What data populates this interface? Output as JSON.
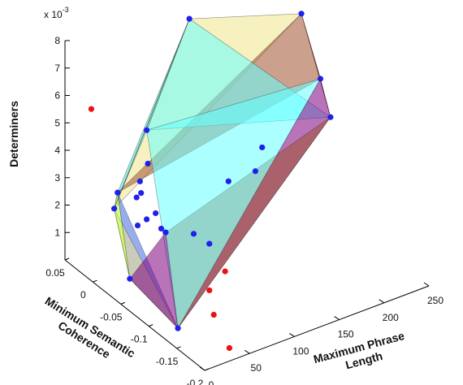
{
  "chart_data": {
    "type": "scatter",
    "subtype": "3d-scatter-with-convex-hull",
    "title": "",
    "xlabel": "Maximum Phrase Length",
    "ylabel": "Minimum Semantic Coherence",
    "zlabel": "Determiners",
    "z_exponent_label": "x 10",
    "z_exponent_power": "-3",
    "xlim": [
      0,
      250
    ],
    "ylim": [
      -0.2,
      0.05
    ],
    "zlim": [
      0,
      0.008
    ],
    "x_ticks": [
      "0",
      "50",
      "100",
      "150",
      "200",
      "250"
    ],
    "y_ticks": [
      "-0.2",
      "-0.15",
      "-0.1",
      "-0.05",
      "0",
      "0.05"
    ],
    "z_ticks": [
      "1",
      "2",
      "3",
      "4",
      "5",
      "6",
      "7",
      "8"
    ],
    "grid": false,
    "series": [
      {
        "color": "#2020ee",
        "points": [
          {
            "x": 120,
            "y": 0.02,
            "z": 0.0078
          },
          {
            "x": 220,
            "y": -0.02,
            "z": 0.0074
          },
          {
            "x": 235,
            "y": -0.03,
            "z": 0.005
          },
          {
            "x": 240,
            "y": -0.04,
            "z": 0.0037
          },
          {
            "x": 15,
            "y": -0.02,
            "z": 0.0034
          },
          {
            "x": 5,
            "y": -0.03,
            "z": 0.0031
          },
          {
            "x": 10,
            "y": -0.05,
            "z": 0.0008
          },
          {
            "x": 20,
            "y": -0.12,
            "z": 0.0
          },
          {
            "x": 50,
            "y": -0.05,
            "z": 0.002
          },
          {
            "x": 60,
            "y": 0.0,
            "z": 0.0048
          },
          {
            "x": 55,
            "y": -0.01,
            "z": 0.0038
          },
          {
            "x": 40,
            "y": -0.02,
            "z": 0.0035
          },
          {
            "x": 35,
            "y": -0.03,
            "z": 0.0033
          },
          {
            "x": 30,
            "y": -0.03,
            "z": 0.0032
          },
          {
            "x": 45,
            "y": -0.04,
            "z": 0.0026
          },
          {
            "x": 35,
            "y": -0.04,
            "z": 0.0025
          },
          {
            "x": 25,
            "y": -0.04,
            "z": 0.0024
          },
          {
            "x": 75,
            "y": -0.06,
            "z": 0.0018
          },
          {
            "x": 80,
            "y": -0.08,
            "z": 0.0017
          },
          {
            "x": 120,
            "y": -0.05,
            "z": 0.003
          },
          {
            "x": 150,
            "y": -0.05,
            "z": 0.003
          },
          {
            "x": 170,
            "y": -0.03,
            "z": 0.0033
          },
          {
            "x": 45,
            "y": -0.05,
            "z": 0.0022
          }
        ]
      },
      {
        "color": "#ee1111",
        "points": [
          {
            "x": 20,
            "y": 0.035,
            "z": 0.0055
          },
          {
            "x": 80,
            "y": -0.08,
            "z": 0.0
          },
          {
            "x": 110,
            "y": -0.06,
            "z": 0.0
          },
          {
            "x": 60,
            "y": -0.12,
            "z": 0.0
          },
          {
            "x": 40,
            "y": -0.18,
            "z": 0.0
          }
        ]
      }
    ],
    "hull_face_colors": [
      "#f0e68c",
      "#40e0d0",
      "#66ffff",
      "#a0522d",
      "#dd2222",
      "#800080",
      "#4169e1",
      "#adff2f"
    ]
  }
}
